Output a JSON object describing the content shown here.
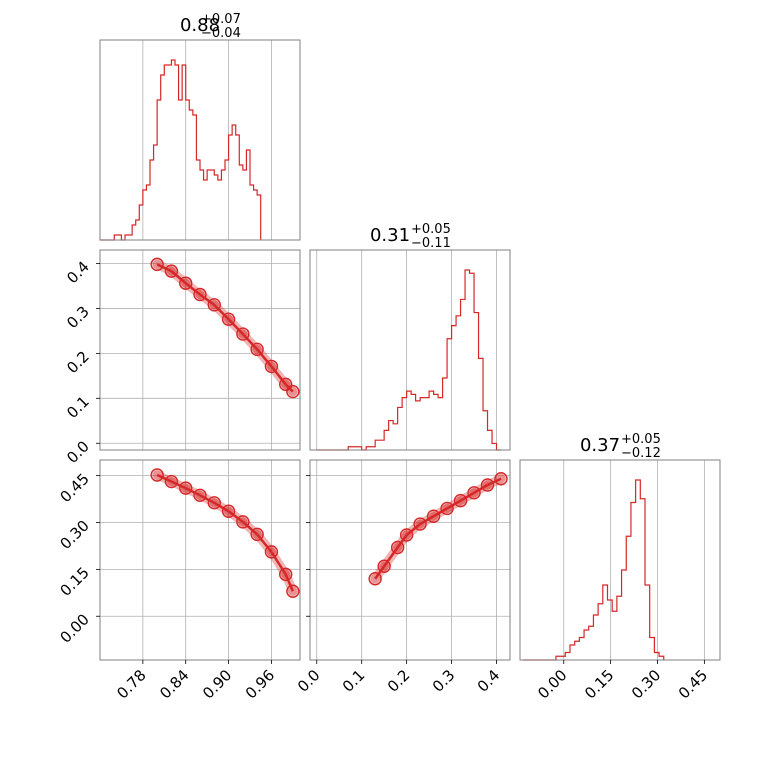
{
  "chart_data": [
    {
      "type": "histogram",
      "panel": "marginal-1",
      "title": {
        "value": "0.88",
        "plus": "+0.07",
        "minus": "−0.04"
      },
      "xlim": [
        0.72,
        1.0
      ],
      "xticks": [
        "0.78",
        "0.84",
        "0.90",
        "0.96"
      ],
      "xtick_values": [
        0.78,
        0.84,
        0.9,
        0.96
      ],
      "bins": {
        "start": 0.72,
        "width": 0.005
      },
      "counts": [
        0,
        0,
        0,
        0,
        1,
        1,
        0,
        1,
        1,
        3,
        4,
        7,
        10,
        11,
        16,
        19,
        28,
        33,
        35,
        35,
        36,
        35,
        28,
        35,
        28,
        26,
        25,
        16,
        14,
        12,
        14,
        14,
        13,
        12,
        14,
        16,
        21,
        23,
        21,
        15,
        14,
        18,
        11,
        10,
        9
      ],
      "color": "#d62728"
    },
    {
      "type": "histogram",
      "panel": "marginal-2",
      "title": {
        "value": "0.31",
        "plus": "+0.05",
        "minus": "−0.11"
      },
      "xlim": [
        -0.015,
        0.43
      ],
      "xticks": [
        "0.0",
        "0.1",
        "0.2",
        "0.3",
        "0.4"
      ],
      "xtick_values": [
        0.0,
        0.1,
        0.2,
        0.3,
        0.4
      ],
      "bins": {
        "start": 0.0,
        "width": 0.01
      },
      "counts": [
        0,
        0,
        0,
        0,
        0,
        0,
        0,
        1,
        1,
        1,
        0,
        1,
        1,
        3,
        3,
        6,
        9,
        8,
        13,
        16,
        18,
        17,
        15,
        16,
        16,
        18,
        17,
        16,
        22,
        34,
        38,
        41,
        46,
        55,
        54,
        42,
        28,
        12,
        6,
        2,
        0
      ],
      "color": "#d62728"
    },
    {
      "type": "histogram",
      "panel": "marginal-3",
      "title": {
        "value": "0.37",
        "plus": "+0.05",
        "minus": "−0.12"
      },
      "xlim": [
        -0.14,
        0.5
      ],
      "xticks": [
        "0.00",
        "0.15",
        "0.30",
        "0.45"
      ],
      "xtick_values": [
        0.0,
        0.15,
        0.3,
        0.45
      ],
      "bins": {
        "start": -0.13,
        "width": 0.015
      },
      "counts": [
        0,
        0,
        0,
        0,
        0,
        0,
        0,
        1,
        1,
        2,
        4,
        5,
        6,
        8,
        9,
        12,
        15,
        20,
        16,
        13,
        17,
        24,
        33,
        42,
        48,
        43,
        20,
        6,
        2,
        1
      ],
      "color": "#d62728"
    },
    {
      "type": "scatter",
      "panel": "joint-2-1",
      "xlim": [
        0.72,
        1.0
      ],
      "ylim": [
        -0.015,
        0.43
      ],
      "yticks": [
        "0.0",
        "0.1",
        "0.2",
        "0.3",
        "0.4"
      ],
      "ytick_values": [
        0.0,
        0.1,
        0.2,
        0.3,
        0.4
      ],
      "relation": {
        "param_start": 0.8,
        "param_end": 0.99
      },
      "points": [
        [
          0.8,
          0.398
        ],
        [
          0.82,
          0.383
        ],
        [
          0.84,
          0.356
        ],
        [
          0.86,
          0.331
        ],
        [
          0.88,
          0.308
        ],
        [
          0.9,
          0.276
        ],
        [
          0.92,
          0.243
        ],
        [
          0.94,
          0.209
        ],
        [
          0.96,
          0.171
        ],
        [
          0.98,
          0.131
        ],
        [
          0.99,
          0.115
        ]
      ],
      "color": "#d62728"
    },
    {
      "type": "scatter",
      "panel": "joint-3-1",
      "xlim": [
        0.72,
        1.0
      ],
      "ylim": [
        -0.14,
        0.5
      ],
      "yticks": [
        "0.00",
        "0.15",
        "0.30",
        "0.45"
      ],
      "ytick_values": [
        0.0,
        0.15,
        0.3,
        0.45
      ],
      "points": [
        [
          0.8,
          0.452
        ],
        [
          0.82,
          0.431
        ],
        [
          0.84,
          0.41
        ],
        [
          0.86,
          0.387
        ],
        [
          0.88,
          0.363
        ],
        [
          0.9,
          0.336
        ],
        [
          0.92,
          0.302
        ],
        [
          0.94,
          0.262
        ],
        [
          0.96,
          0.206
        ],
        [
          0.98,
          0.134
        ],
        [
          0.99,
          0.08
        ]
      ],
      "color": "#d62728"
    },
    {
      "type": "scatter",
      "panel": "joint-3-2",
      "xlim": [
        -0.015,
        0.43
      ],
      "ylim": [
        -0.14,
        0.5
      ],
      "points": [
        [
          0.13,
          0.12
        ],
        [
          0.15,
          0.16
        ],
        [
          0.18,
          0.22
        ],
        [
          0.2,
          0.26
        ],
        [
          0.23,
          0.295
        ],
        [
          0.26,
          0.32
        ],
        [
          0.29,
          0.345
        ],
        [
          0.32,
          0.37
        ],
        [
          0.35,
          0.395
        ],
        [
          0.38,
          0.42
        ],
        [
          0.41,
          0.44
        ]
      ],
      "color": "#d62728"
    }
  ]
}
